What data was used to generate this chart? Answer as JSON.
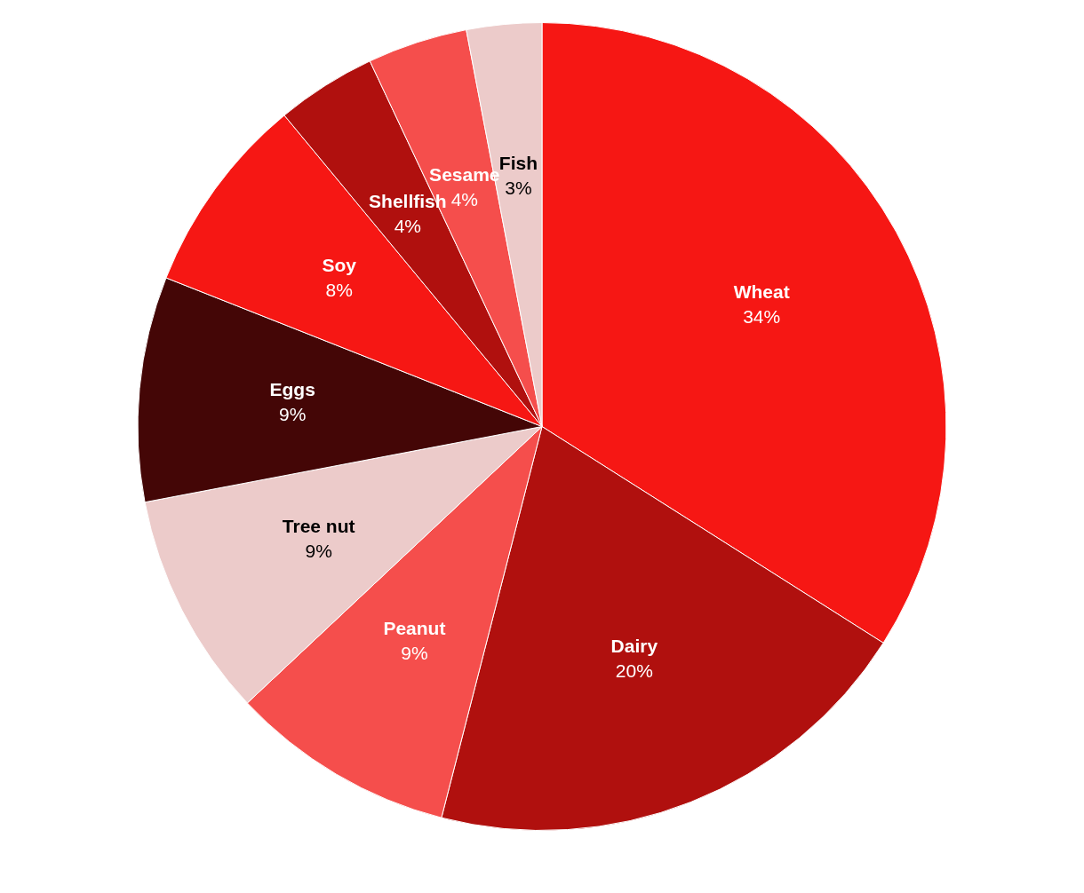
{
  "chart_data": {
    "type": "pie",
    "categories": [
      "Wheat",
      "Dairy",
      "Peanut",
      "Tree nut",
      "Eggs",
      "Soy",
      "Shellfish",
      "Sesame",
      "Fish"
    ],
    "values": [
      34,
      20,
      9,
      9,
      9,
      8,
      4,
      4,
      3
    ],
    "value_labels": [
      "34%",
      "20%",
      "9%",
      "9%",
      "9%",
      "8%",
      "4%",
      "4%",
      "3%"
    ],
    "colors": [
      "#f61714",
      "#b0100e",
      "#f54e4c",
      "#eccbca",
      "#440606",
      "#f61714",
      "#b0100e",
      "#f54e4c",
      "#eccbca"
    ],
    "legend": false
  }
}
